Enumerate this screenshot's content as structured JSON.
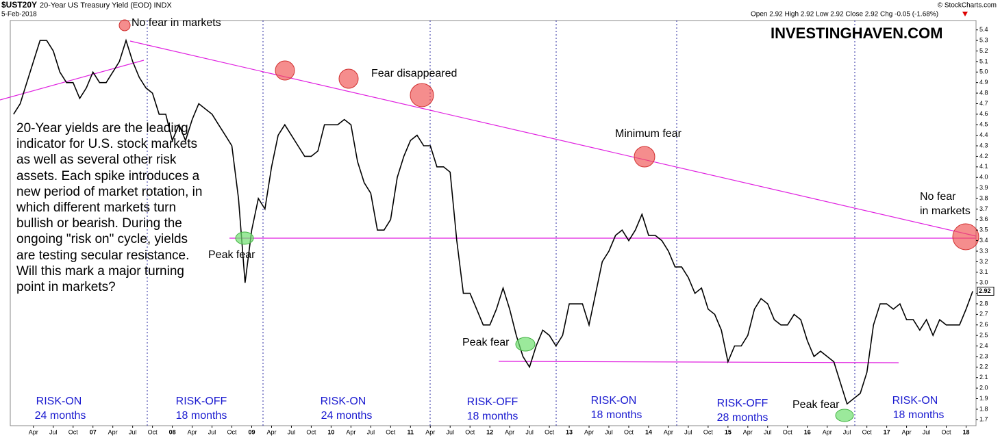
{
  "chart_data": {
    "type": "line",
    "symbol": "$UST20Y",
    "title": "20-Year US Treasury Yield (EOD) INDX",
    "date": "5-Feb-2018",
    "quote": "Open 2.92 High 2.92 Low 2.92 Close 2.92 Chg -0.05 (-1.68%)",
    "credit": "© StockCharts.com",
    "watermark": "INVESTINGHAVEN.COM",
    "commentary": "20-Year yields are the leading indicator for U.S. stock markets as well as several other risk assets. Each spike introduces a new period of market rotation, in which different markets turn bullish or bearish. During the ongoing \"risk on\" cycle, yields are testing secular resistance. Will this mark a major turning point in markets?",
    "annotations": [
      "No fear in markets",
      "Fear disappeared",
      "Minimum fear",
      "No fear",
      "in markets",
      "Peak fear",
      "Peak fear",
      "Peak fear"
    ],
    "regimes": [
      {
        "label": "RISK-ON",
        "duration": "24 months"
      },
      {
        "label": "RISK-OFF",
        "duration": "18 months"
      },
      {
        "label": "RISK-ON",
        "duration": "24 months"
      },
      {
        "label": "RISK-OFF",
        "duration": "18 months"
      },
      {
        "label": "RISK-ON",
        "duration": "18 months"
      },
      {
        "label": "RISK-OFF",
        "duration": "28 months"
      },
      {
        "label": "RISK-ON",
        "duration": "18 months"
      }
    ],
    "last_value": 2.92,
    "color": "#000000",
    "categories": [
      null,
      null,
      null,
      "Apr",
      null,
      null,
      "Jul",
      null,
      null,
      "Oct",
      null,
      null,
      "07",
      null,
      null,
      "Apr",
      null,
      null,
      "Jul",
      null,
      null,
      "Oct",
      null,
      null,
      "08",
      null,
      null,
      "Apr",
      null,
      null,
      "Jul",
      null,
      null,
      "Oct",
      null,
      null,
      "09",
      null,
      null,
      "Apr",
      null,
      null,
      "Jul",
      null,
      null,
      "Oct",
      null,
      null,
      "10",
      null,
      null,
      "Apr",
      null,
      null,
      "Jul",
      null,
      null,
      "Oct",
      null,
      null,
      "11",
      null,
      null,
      "Apr",
      null,
      null,
      "Jul",
      null,
      null,
      "Oct",
      null,
      null,
      "12",
      null,
      null,
      "Apr",
      null,
      null,
      "Jul",
      null,
      null,
      "Oct",
      null,
      null,
      "13",
      null,
      null,
      "Apr",
      null,
      null,
      "Jul",
      null,
      null,
      "Oct",
      null,
      null,
      "14",
      null,
      null,
      "Apr",
      null,
      null,
      "Jul",
      null,
      null,
      "Oct",
      null,
      null,
      "15",
      null,
      null,
      "Apr",
      null,
      null,
      "Jul",
      null,
      null,
      "Oct",
      null,
      null,
      "16",
      null,
      null,
      "Apr",
      null,
      null,
      "Jul",
      null,
      null,
      "Oct",
      null,
      null,
      "17",
      null,
      null,
      "Apr",
      null,
      null,
      "Jul",
      null,
      null,
      "Oct",
      null,
      null,
      "18",
      null
    ],
    "values": [
      4.6,
      4.7,
      4.9,
      5.1,
      5.3,
      5.3,
      5.2,
      5.0,
      4.9,
      4.9,
      4.75,
      4.85,
      5.0,
      4.9,
      4.9,
      5.0,
      5.1,
      5.3,
      5.1,
      4.95,
      4.85,
      4.8,
      4.6,
      4.6,
      4.35,
      4.5,
      4.35,
      4.55,
      4.7,
      4.65,
      4.6,
      4.5,
      4.4,
      4.3,
      3.8,
      3.0,
      3.5,
      3.8,
      3.7,
      4.1,
      4.4,
      4.5,
      4.4,
      4.3,
      4.2,
      4.2,
      4.25,
      4.5,
      4.5,
      4.5,
      4.55,
      4.5,
      4.15,
      3.95,
      3.85,
      3.5,
      3.5,
      3.6,
      4.0,
      4.2,
      4.35,
      4.4,
      4.3,
      4.3,
      4.1,
      4.1,
      4.05,
      3.4,
      2.9,
      2.9,
      2.75,
      2.6,
      2.6,
      2.75,
      2.95,
      2.75,
      2.5,
      2.3,
      2.2,
      2.4,
      2.55,
      2.5,
      2.4,
      2.5,
      2.8,
      2.8,
      2.8,
      2.6,
      2.9,
      3.2,
      3.3,
      3.45,
      3.5,
      3.4,
      3.5,
      3.65,
      3.45,
      3.45,
      3.4,
      3.3,
      3.15,
      3.15,
      3.05,
      2.9,
      2.95,
      2.75,
      2.7,
      2.55,
      2.25,
      2.4,
      2.4,
      2.5,
      2.75,
      2.85,
      2.8,
      2.65,
      2.6,
      2.6,
      2.7,
      2.65,
      2.45,
      2.3,
      2.35,
      2.3,
      2.25,
      2.05,
      1.85,
      1.9,
      1.95,
      2.15,
      2.6,
      2.8,
      2.8,
      2.75,
      2.8,
      2.65,
      2.65,
      2.55,
      2.65,
      2.5,
      2.65,
      2.6,
      2.6,
      2.6,
      2.75,
      2.92
    ],
    "ylim": [
      1.65,
      5.45
    ],
    "yticks": [
      1.7,
      1.8,
      1.9,
      {
        "value": 2,
        "label": "2.0"
      },
      2.1,
      2.2,
      2.3,
      2.4,
      2.5,
      2.6,
      2.7,
      2.8,
      2.9,
      {
        "value": 3,
        "label": "3.0"
      },
      3.1,
      3.2,
      3.3,
      3.4,
      3.5,
      3.6,
      3.7,
      3.8,
      3.9,
      {
        "value": 4,
        "label": "4.0"
      },
      4.1,
      4.2,
      4.3,
      4.4,
      4.5,
      4.6,
      4.7,
      4.8,
      4.9,
      {
        "value": 5,
        "label": "5.0"
      },
      5.1,
      5.2,
      5.3,
      5.4
    ]
  }
}
